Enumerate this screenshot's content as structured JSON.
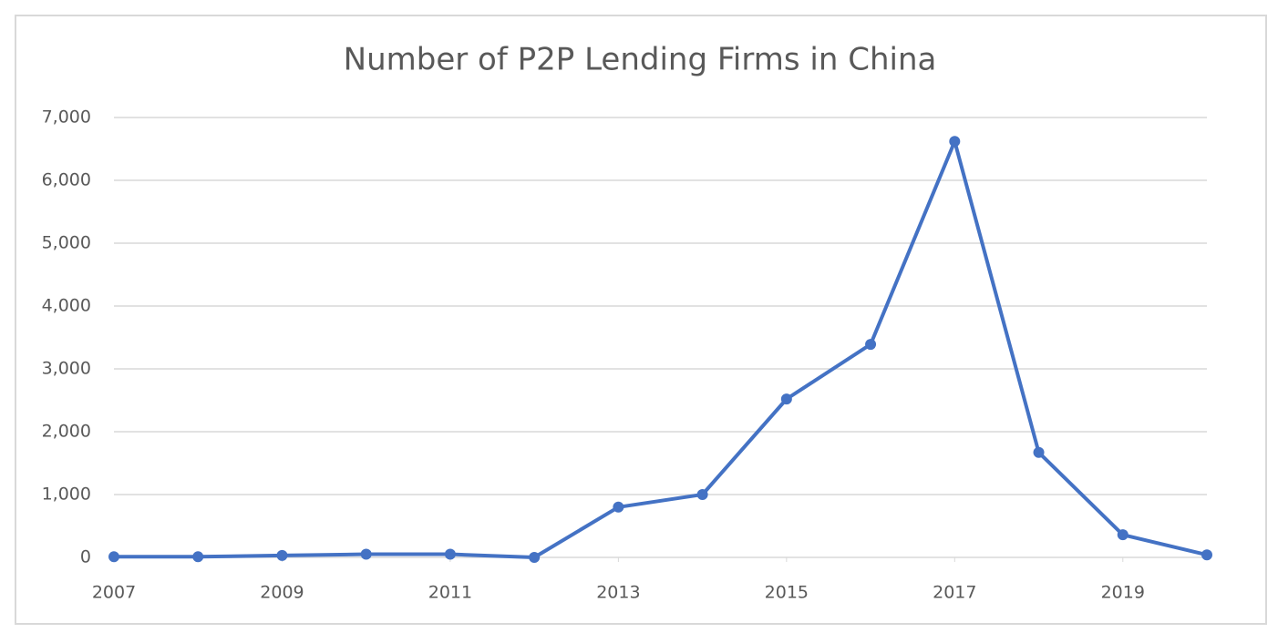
{
  "chart_data": {
    "type": "line",
    "title": "Number of P2P Lending Firms in China",
    "x": [
      2007,
      2008,
      2009,
      2010,
      2011,
      2012,
      2013,
      2014,
      2015,
      2016,
      2017,
      2018,
      2019,
      2020
    ],
    "series": [
      {
        "name": "P2P lending firms",
        "color": "#4472c4",
        "values": [
          10,
          10,
          30,
          50,
          50,
          0,
          800,
          1000,
          2520,
          3390,
          6620,
          1670,
          360,
          40
        ]
      }
    ],
    "xlim": [
      2007,
      2020
    ],
    "xticks": [
      2007,
      2009,
      2011,
      2013,
      2015,
      2017,
      2019
    ],
    "ylim": [
      0,
      7000
    ],
    "yticks": [
      0,
      {
        "value": 1000,
        "label": "1,000"
      },
      {
        "value": 2000,
        "label": "2,000"
      },
      {
        "value": 3000,
        "label": "3,000"
      },
      {
        "value": 4000,
        "label": "4,000"
      },
      {
        "value": 5000,
        "label": "5,000"
      },
      {
        "value": 6000,
        "label": "6,000"
      },
      {
        "value": 7000,
        "label": "7,000"
      }
    ],
    "grid": true
  }
}
